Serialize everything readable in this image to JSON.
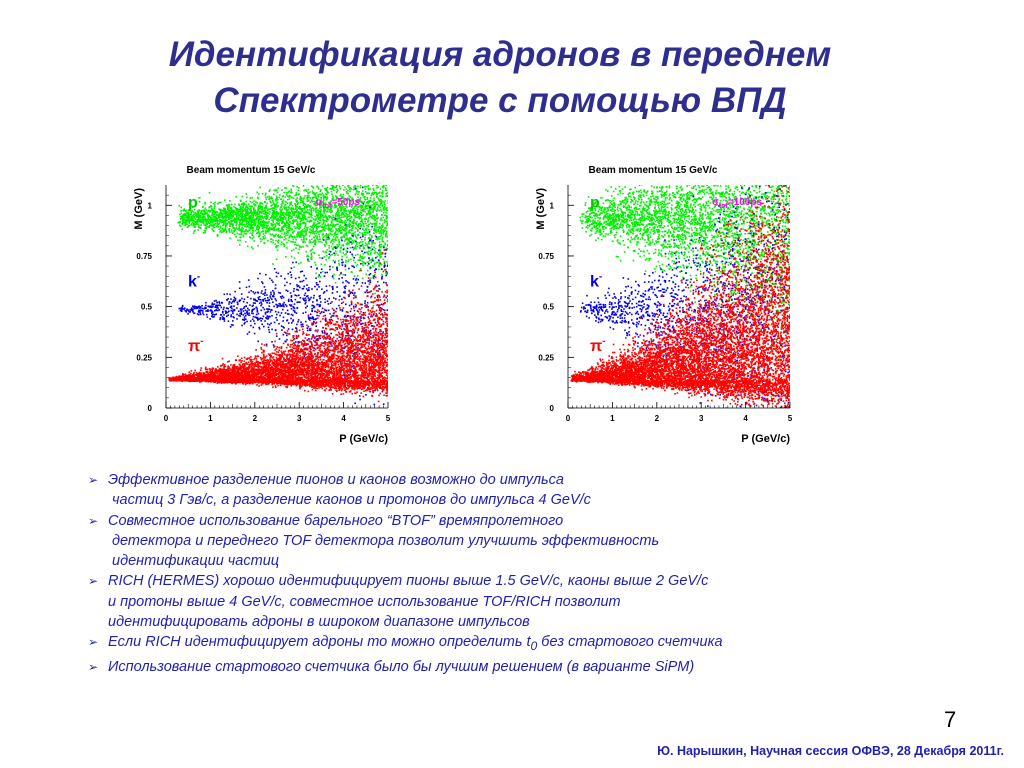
{
  "title": {
    "line1": "Идентификация адронов в переднем",
    "line2": "Спектрометре с помощью ВПД"
  },
  "chart_data": [
    {
      "type": "scatter",
      "title": "Beam momentum 15 GeV/c",
      "xlabel": "P (GeV/c)",
      "ylabel": "M (GeV)",
      "xlim": [
        0,
        5
      ],
      "ylim": [
        0,
        1.1
      ],
      "xticks": [
        "0",
        "1",
        "2",
        "3",
        "4",
        "5"
      ],
      "yticks": [
        "0",
        "0.25",
        "0.5",
        "0.75",
        "1"
      ],
      "annotation": "σtof=50ps",
      "series": [
        {
          "name": "p-",
          "color": "#00ee00",
          "mass": 0.94,
          "spread": 0.02,
          "spread_growth": 0.024,
          "density": 3600
        },
        {
          "name": "k-",
          "color": "#0000ee",
          "mass": 0.49,
          "spread": 0.004,
          "spread_growth": 0.04,
          "density": 1100
        },
        {
          "name": "π-",
          "color": "#ff0000",
          "mass": 0.14,
          "spread": 0.006,
          "spread_growth": 0.036,
          "density": 6500
        }
      ]
    },
    {
      "type": "scatter",
      "title": "Beam momentum 15 GeV/c",
      "xlabel": "P (GeV/c)",
      "ylabel": "M (GeV)",
      "xlim": [
        0,
        5
      ],
      "ylim": [
        0,
        1.1
      ],
      "xticks": [
        "0",
        "1",
        "2",
        "3",
        "4",
        "5"
      ],
      "yticks": [
        "0",
        "0.25",
        "0.5",
        "0.75",
        "1"
      ],
      "annotation": "σtof=100ps",
      "series": [
        {
          "name": "p-",
          "color": "#00ee00",
          "mass": 0.94,
          "spread": 0.03,
          "spread_growth": 0.05,
          "density": 3600
        },
        {
          "name": "k-",
          "color": "#0000ee",
          "mass": 0.49,
          "spread": 0.006,
          "spread_growth": 0.075,
          "density": 1300
        },
        {
          "name": "π-",
          "color": "#ff0000",
          "mass": 0.14,
          "spread": 0.01,
          "spread_growth": 0.075,
          "density": 8000
        }
      ]
    }
  ],
  "bullets": [
    {
      "lines": [
        "Эффективное разделение пионов и каонов возможно до импульса",
        "частиц 3 Гэв/с, а разделение каонов и протонов до импульса  4 GeV/c"
      ]
    },
    {
      "lines": [
        " Совместное использование барельного “BTOF” времяпролетного",
        "детектора и переднего TOF детектора позволит улучшить эффективность",
        "идентификации частиц"
      ]
    },
    {
      "lines": [
        "RICH (HERMES) хорошо идентифицирует пионы выше 1.5 GeV/c, каоны выше 2 GeV/c",
        "и протоны выше 4 GeV/c, совместное использование TOF/RICH позволит",
        "идентифицировать адроны в широком диапазоне импульсов"
      ]
    },
    {
      "lines": [
        "Если RICH идентифицирует адроны то можно определить t0 без стартового счетчика"
      ]
    },
    {
      "lines": [
        "Использование стартового счетчика было бы лучшим решением (в варианте SiPM)"
      ]
    }
  ],
  "page_number": "7",
  "footer": "Ю. Нарышкин, Научная сессия ОФВЭ, 28  Декабря 2011г."
}
